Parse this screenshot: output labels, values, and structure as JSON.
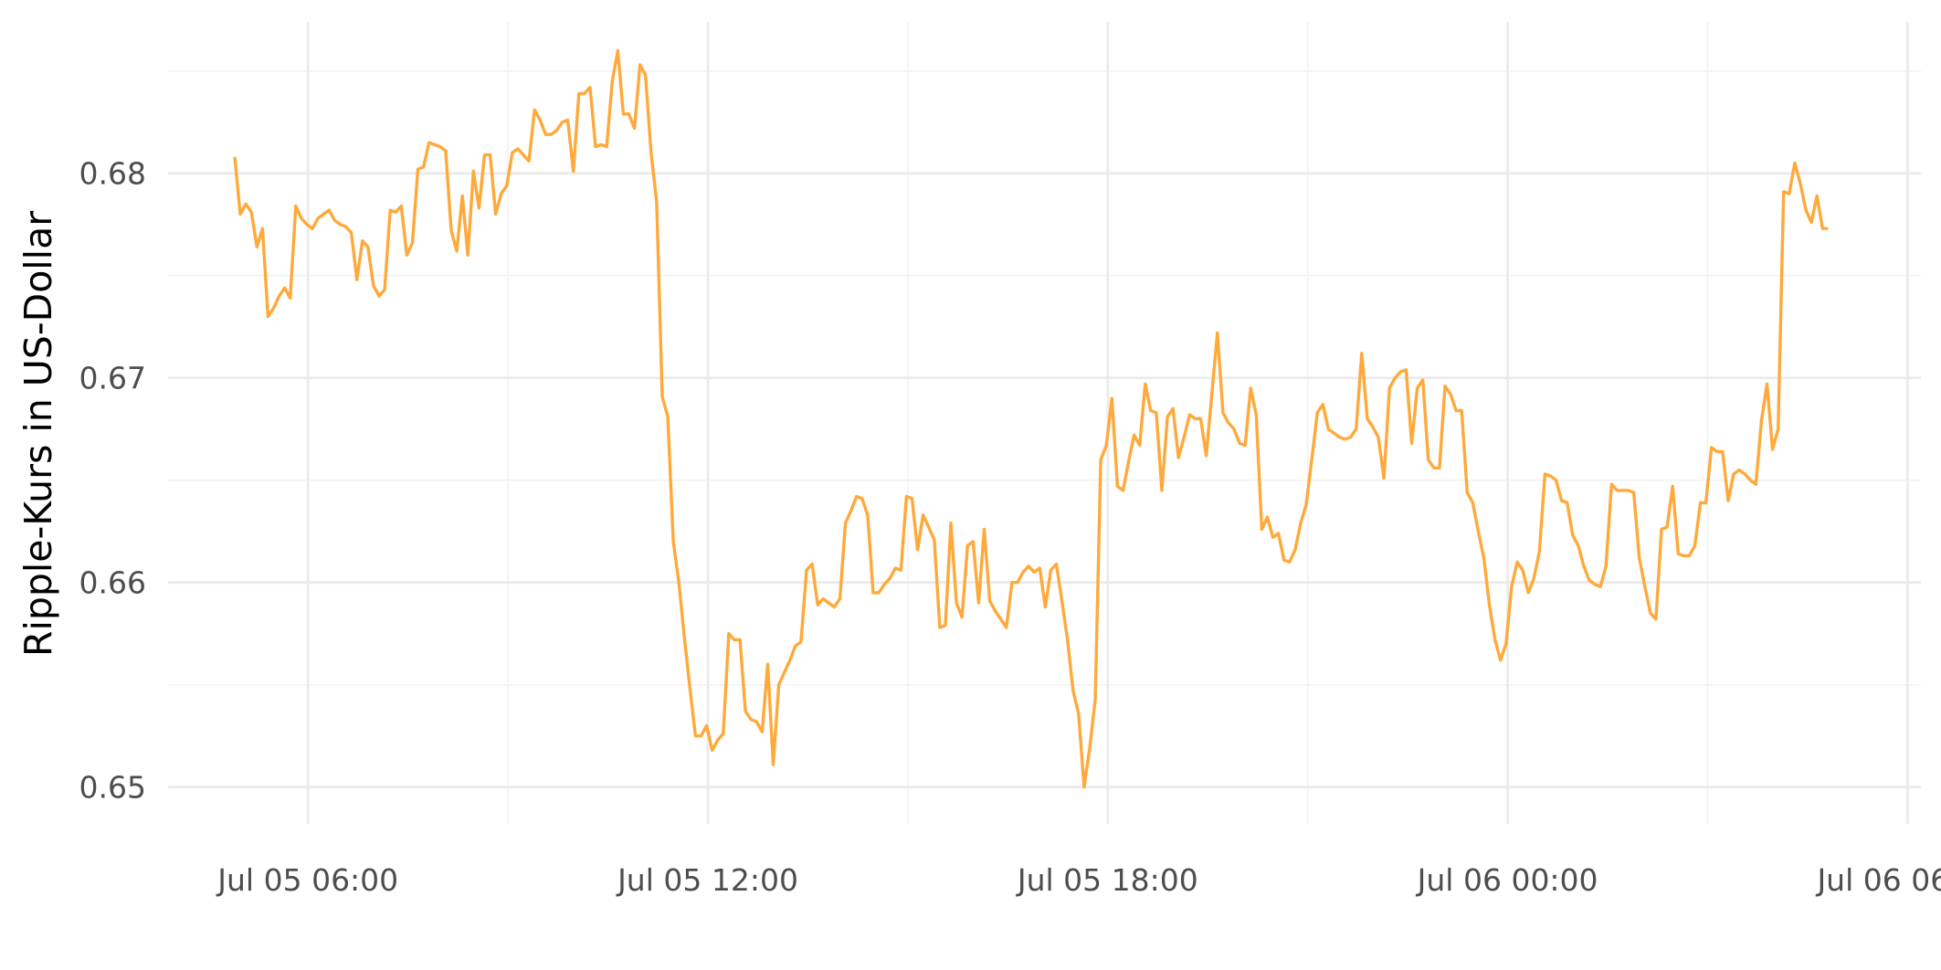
{
  "chart_data": {
    "type": "line",
    "ylabel": "Ripple-Kurs in US-Dollar",
    "x_tick_labels": [
      "Jul 05 06:00",
      "Jul 05 12:00",
      "Jul 05 18:00",
      "Jul 06 00:00",
      "Jul 06 06:00"
    ],
    "x_tick_hours": [
      6,
      12,
      18,
      24,
      30
    ],
    "x_range_hours": [
      3.9,
      30.2
    ],
    "y_ticks": [
      0.65,
      0.66,
      0.67,
      0.68
    ],
    "y_tick_labels": [
      "0.65",
      "0.66",
      "0.67",
      "0.68"
    ],
    "y_range": [
      0.6482,
      0.6874
    ],
    "grid": true,
    "line_color": "#FFA93A",
    "series": [
      {
        "x_start_hour": 4.9,
        "x_step_hours": 0.0833,
        "values": [
          0.6808,
          0.678,
          0.6785,
          0.6781,
          0.6764,
          0.6773,
          0.673,
          0.6734,
          0.674,
          0.6744,
          0.6739,
          0.6784,
          0.6778,
          0.6775,
          0.6773,
          0.6778,
          0.678,
          0.6782,
          0.6777,
          0.6775,
          0.6774,
          0.6771,
          0.6748,
          0.6767,
          0.6764,
          0.6745,
          0.674,
          0.6743,
          0.6782,
          0.6781,
          0.6784,
          0.676,
          0.6766,
          0.6802,
          0.6803,
          0.6815,
          0.6814,
          0.6813,
          0.6811,
          0.6772,
          0.6762,
          0.6789,
          0.676,
          0.6801,
          0.6783,
          0.6809,
          0.6809,
          0.678,
          0.679,
          0.6794,
          0.681,
          0.6812,
          0.6809,
          0.6806,
          0.6831,
          0.6826,
          0.6819,
          0.6819,
          0.6821,
          0.6825,
          0.6826,
          0.6801,
          0.6839,
          0.6839,
          0.6842,
          0.6813,
          0.6814,
          0.6813,
          0.6845,
          0.686,
          0.6829,
          0.6829,
          0.6822,
          0.6853,
          0.6848,
          0.681,
          0.6786,
          0.6691,
          0.6681,
          0.662,
          0.66,
          0.6573,
          0.6548,
          0.6525,
          0.6525,
          0.653,
          0.6518,
          0.6523,
          0.6526,
          0.6575,
          0.6572,
          0.6572,
          0.6537,
          0.6533,
          0.6532,
          0.6527,
          0.656,
          0.6511,
          0.655,
          0.6556,
          0.6562,
          0.6569,
          0.6571,
          0.6606,
          0.6609,
          0.6589,
          0.6592,
          0.659,
          0.6588,
          0.6592,
          0.6629,
          0.6635,
          0.6642,
          0.6641,
          0.6633,
          0.6595,
          0.6595,
          0.6599,
          0.6602,
          0.6607,
          0.6606,
          0.6642,
          0.6641,
          0.6616,
          0.6633,
          0.6627,
          0.6621,
          0.6578,
          0.6579,
          0.6629,
          0.659,
          0.6583,
          0.6618,
          0.662,
          0.659,
          0.6626,
          0.6591,
          0.6586,
          0.6582,
          0.6578,
          0.66,
          0.66,
          0.6605,
          0.6608,
          0.6605,
          0.6607,
          0.6588,
          0.6606,
          0.6609,
          0.6591,
          0.6572,
          0.6547,
          0.6536,
          0.65,
          0.6519,
          0.6543,
          0.666,
          0.6667,
          0.669,
          0.6647,
          0.6645,
          0.6659,
          0.6672,
          0.6667,
          0.6697,
          0.6684,
          0.6683,
          0.6645,
          0.6681,
          0.6685,
          0.6661,
          0.6671,
          0.6682,
          0.668,
          0.668,
          0.6662,
          0.6692,
          0.6722,
          0.6683,
          0.6678,
          0.6675,
          0.6668,
          0.6667,
          0.6695,
          0.6682,
          0.6626,
          0.6632,
          0.6622,
          0.6624,
          0.6611,
          0.661,
          0.6616,
          0.6629,
          0.6638,
          0.666,
          0.6683,
          0.6687,
          0.6675,
          0.6673,
          0.6671,
          0.667,
          0.6671,
          0.6675,
          0.6712,
          0.668,
          0.6676,
          0.6671,
          0.6651,
          0.6695,
          0.67,
          0.6703,
          0.6704,
          0.6668,
          0.6695,
          0.6699,
          0.666,
          0.6656,
          0.6656,
          0.6696,
          0.6692,
          0.6684,
          0.6684,
          0.6644,
          0.6639,
          0.6625,
          0.6612,
          0.6589,
          0.6572,
          0.6562,
          0.657,
          0.6598,
          0.661,
          0.6606,
          0.6595,
          0.6602,
          0.6615,
          0.6653,
          0.6652,
          0.665,
          0.664,
          0.6639,
          0.6623,
          0.6618,
          0.6608,
          0.6601,
          0.6599,
          0.6598,
          0.6608,
          0.6648,
          0.6645,
          0.6645,
          0.6645,
          0.6644,
          0.6612,
          0.6598,
          0.6585,
          0.6582,
          0.6626,
          0.6627,
          0.6647,
          0.6614,
          0.6613,
          0.6613,
          0.6618,
          0.6639,
          0.6639,
          0.6666,
          0.6664,
          0.6664,
          0.664,
          0.6653,
          0.6655,
          0.6653,
          0.665,
          0.6648,
          0.6679,
          0.6697,
          0.6665,
          0.6675,
          0.6791,
          0.679,
          0.6805,
          0.6795,
          0.6782,
          0.6776,
          0.6789,
          0.6773,
          0.6773
        ]
      }
    ]
  }
}
